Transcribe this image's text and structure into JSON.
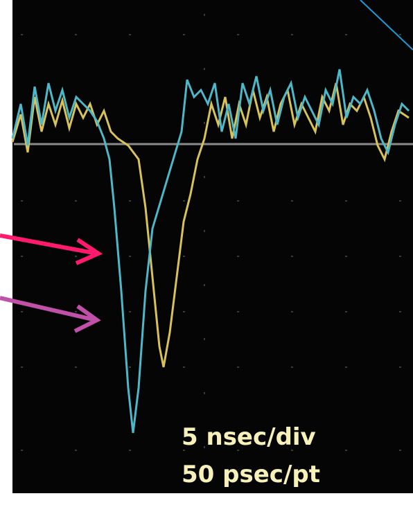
{
  "annotations": {
    "time_per_div": "5 nsec/div",
    "time_per_point": "50 psec/pt"
  }
}
